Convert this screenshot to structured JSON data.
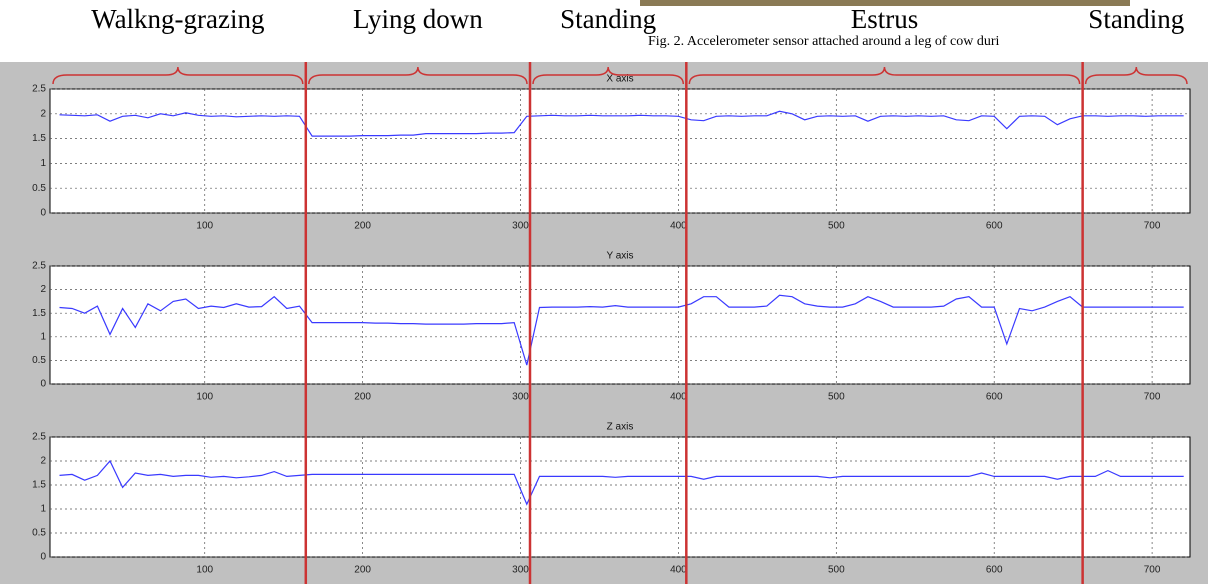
{
  "annotations": {
    "labels": [
      "Walkng-grazing",
      "Lying down",
      "Standing",
      "Estrus",
      "Standing"
    ],
    "caption": "Fig. 2. Accelerometer sensor attached around a leg of cow duri",
    "boundaries": [
      164,
      306,
      405,
      656
    ],
    "color": "#cc3333"
  },
  "chart_data": [
    {
      "type": "line",
      "title": "X axis",
      "x": [
        8,
        16,
        24,
        32,
        40,
        48,
        56,
        64,
        72,
        80,
        88,
        96,
        104,
        112,
        120,
        128,
        136,
        144,
        152,
        160,
        168,
        176,
        184,
        192,
        200,
        208,
        216,
        224,
        232,
        240,
        248,
        256,
        264,
        272,
        280,
        288,
        296,
        304,
        312,
        320,
        328,
        336,
        344,
        352,
        360,
        368,
        376,
        384,
        392,
        400,
        408,
        416,
        424,
        432,
        440,
        448,
        456,
        464,
        472,
        480,
        488,
        496,
        504,
        512,
        520,
        528,
        536,
        544,
        552,
        560,
        568,
        576,
        584,
        592,
        600,
        608,
        616,
        624,
        632,
        640,
        648,
        656,
        664,
        672,
        680,
        688,
        696,
        704,
        712,
        720
      ],
      "series": [
        {
          "color": "#3a3aff",
          "values": [
            1.98,
            1.97,
            1.96,
            1.98,
            1.85,
            1.95,
            1.97,
            1.92,
            2.0,
            1.96,
            2.02,
            1.97,
            1.95,
            1.96,
            1.94,
            1.95,
            1.96,
            1.95,
            1.96,
            1.95,
            1.55,
            1.55,
            1.55,
            1.55,
            1.56,
            1.56,
            1.56,
            1.57,
            1.57,
            1.6,
            1.6,
            1.6,
            1.6,
            1.6,
            1.61,
            1.61,
            1.62,
            1.95,
            1.96,
            1.97,
            1.96,
            1.96,
            1.97,
            1.96,
            1.96,
            1.96,
            1.97,
            1.96,
            1.96,
            1.95,
            1.88,
            1.86,
            1.95,
            1.96,
            1.95,
            1.96,
            1.96,
            2.05,
            2.0,
            1.88,
            1.95,
            1.96,
            1.95,
            1.96,
            1.85,
            1.95,
            1.96,
            1.95,
            1.96,
            1.95,
            1.96,
            1.88,
            1.86,
            1.96,
            1.95,
            1.7,
            1.95,
            1.96,
            1.95,
            1.78,
            1.9,
            1.96,
            1.96,
            1.95,
            1.96,
            1.96,
            1.95,
            1.96,
            1.96,
            1.96
          ]
        }
      ],
      "xlim": [
        2,
        724
      ],
      "ylim": [
        0,
        2.5
      ],
      "xticks": [
        100,
        200,
        300,
        400,
        500,
        600,
        700
      ],
      "yticks": [
        0,
        0.5,
        1,
        1.5,
        2,
        2.5
      ],
      "grid": true
    },
    {
      "type": "line",
      "title": "Y axis",
      "x": [
        8,
        16,
        24,
        32,
        40,
        48,
        56,
        64,
        72,
        80,
        88,
        96,
        104,
        112,
        120,
        128,
        136,
        144,
        152,
        160,
        168,
        176,
        184,
        192,
        200,
        208,
        216,
        224,
        232,
        240,
        248,
        256,
        264,
        272,
        280,
        288,
        296,
        304,
        312,
        320,
        328,
        336,
        344,
        352,
        360,
        368,
        376,
        384,
        392,
        400,
        408,
        416,
        424,
        432,
        440,
        448,
        456,
        464,
        472,
        480,
        488,
        496,
        504,
        512,
        520,
        528,
        536,
        544,
        552,
        560,
        568,
        576,
        584,
        592,
        600,
        608,
        616,
        624,
        632,
        640,
        648,
        656,
        664,
        672,
        680,
        688,
        696,
        704,
        712,
        720
      ],
      "series": [
        {
          "color": "#3a3aff",
          "values": [
            1.62,
            1.6,
            1.5,
            1.65,
            1.05,
            1.6,
            1.2,
            1.7,
            1.55,
            1.75,
            1.8,
            1.6,
            1.65,
            1.62,
            1.7,
            1.63,
            1.64,
            1.85,
            1.6,
            1.65,
            1.3,
            1.3,
            1.3,
            1.3,
            1.3,
            1.29,
            1.29,
            1.28,
            1.28,
            1.27,
            1.27,
            1.27,
            1.27,
            1.28,
            1.28,
            1.28,
            1.3,
            0.4,
            1.62,
            1.63,
            1.63,
            1.63,
            1.64,
            1.63,
            1.66,
            1.63,
            1.63,
            1.63,
            1.63,
            1.63,
            1.7,
            1.85,
            1.85,
            1.63,
            1.63,
            1.63,
            1.65,
            1.88,
            1.85,
            1.7,
            1.65,
            1.63,
            1.63,
            1.7,
            1.85,
            1.75,
            1.63,
            1.63,
            1.63,
            1.63,
            1.65,
            1.8,
            1.85,
            1.63,
            1.63,
            0.85,
            1.6,
            1.55,
            1.63,
            1.75,
            1.85,
            1.63,
            1.63,
            1.63,
            1.63,
            1.63,
            1.63,
            1.63,
            1.63,
            1.63
          ]
        }
      ],
      "xlim": [
        2,
        724
      ],
      "ylim": [
        0,
        2.5
      ],
      "xticks": [
        100,
        200,
        300,
        400,
        500,
        600,
        700
      ],
      "yticks": [
        0,
        0.5,
        1,
        1.5,
        2,
        2.5
      ],
      "grid": true
    },
    {
      "type": "line",
      "title": "Z axis",
      "x": [
        8,
        16,
        24,
        32,
        40,
        48,
        56,
        64,
        72,
        80,
        88,
        96,
        104,
        112,
        120,
        128,
        136,
        144,
        152,
        160,
        168,
        176,
        184,
        192,
        200,
        208,
        216,
        224,
        232,
        240,
        248,
        256,
        264,
        272,
        280,
        288,
        296,
        304,
        312,
        320,
        328,
        336,
        344,
        352,
        360,
        368,
        376,
        384,
        392,
        400,
        408,
        416,
        424,
        432,
        440,
        448,
        456,
        464,
        472,
        480,
        488,
        496,
        504,
        512,
        520,
        528,
        536,
        544,
        552,
        560,
        568,
        576,
        584,
        592,
        600,
        608,
        616,
        624,
        632,
        640,
        648,
        656,
        664,
        672,
        680,
        688,
        696,
        704,
        712,
        720
      ],
      "series": [
        {
          "color": "#3a3aff",
          "values": [
            1.7,
            1.72,
            1.6,
            1.7,
            2.0,
            1.45,
            1.75,
            1.7,
            1.72,
            1.68,
            1.7,
            1.7,
            1.66,
            1.68,
            1.65,
            1.67,
            1.7,
            1.78,
            1.68,
            1.7,
            1.72,
            1.72,
            1.72,
            1.72,
            1.72,
            1.72,
            1.72,
            1.72,
            1.72,
            1.72,
            1.72,
            1.72,
            1.72,
            1.72,
            1.72,
            1.72,
            1.72,
            1.1,
            1.68,
            1.68,
            1.68,
            1.68,
            1.68,
            1.68,
            1.66,
            1.68,
            1.68,
            1.68,
            1.68,
            1.68,
            1.68,
            1.62,
            1.68,
            1.68,
            1.68,
            1.68,
            1.68,
            1.68,
            1.68,
            1.68,
            1.68,
            1.65,
            1.68,
            1.68,
            1.68,
            1.68,
            1.68,
            1.68,
            1.68,
            1.68,
            1.68,
            1.68,
            1.68,
            1.75,
            1.68,
            1.68,
            1.68,
            1.68,
            1.68,
            1.62,
            1.68,
            1.68,
            1.68,
            1.8,
            1.68,
            1.68,
            1.68,
            1.68,
            1.68,
            1.68
          ]
        }
      ],
      "xlim": [
        2,
        724
      ],
      "ylim": [
        0,
        2.5
      ],
      "xticks": [
        100,
        200,
        300,
        400,
        500,
        600,
        700
      ],
      "yticks": [
        0,
        0.5,
        1,
        1.5,
        2,
        2.5
      ],
      "grid": true
    }
  ]
}
